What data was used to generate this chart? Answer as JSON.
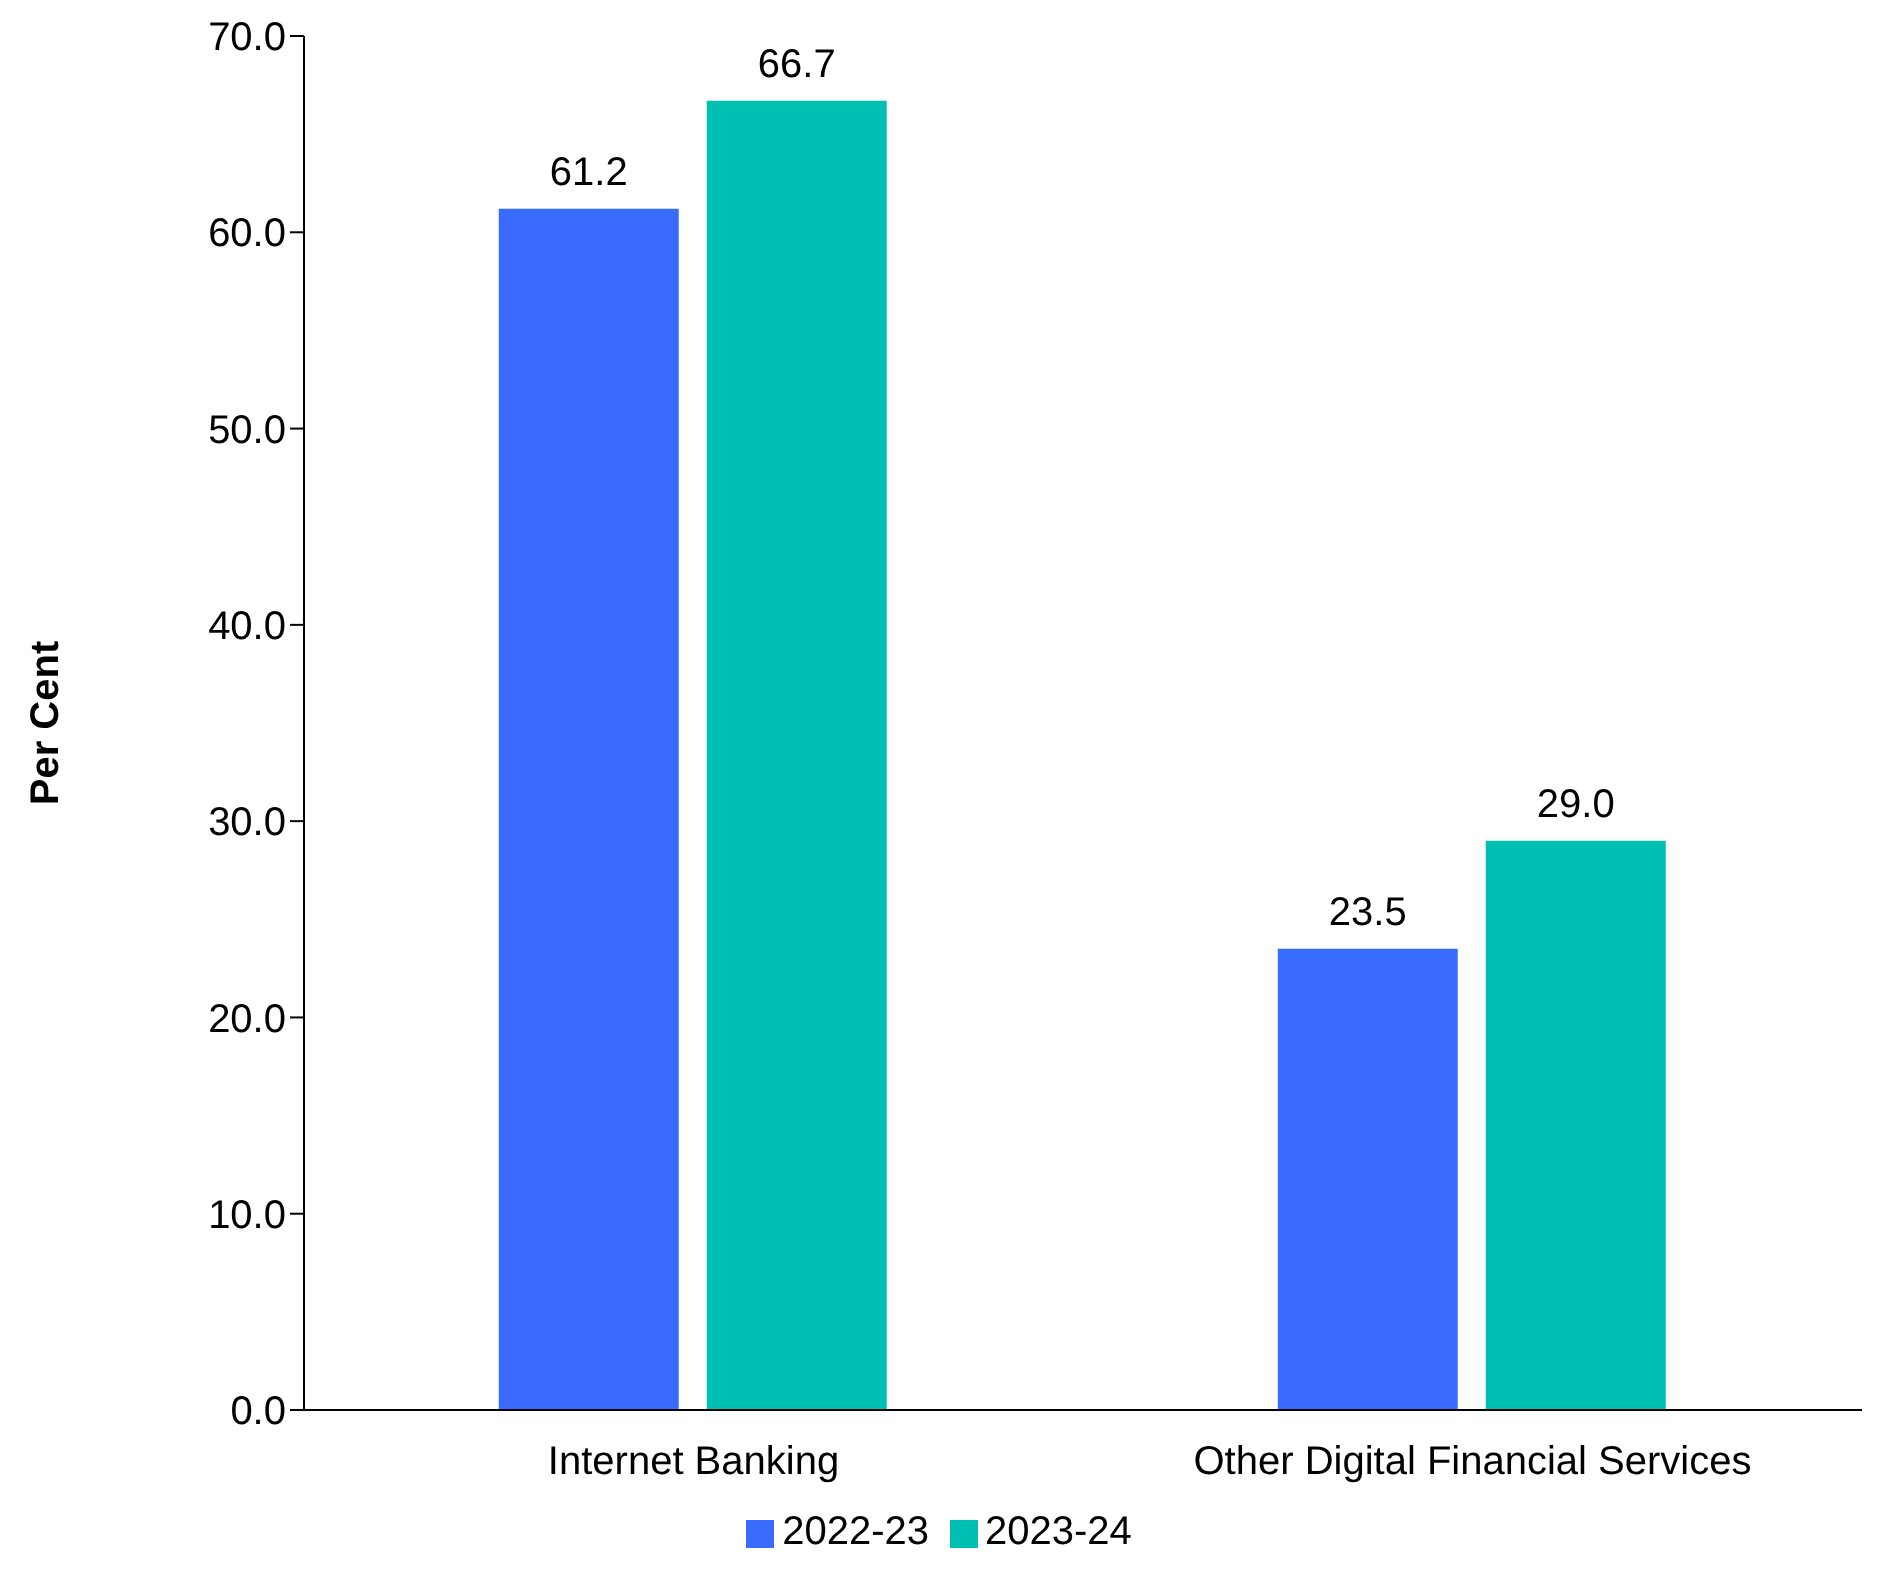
{
  "chart_data": {
    "type": "bar",
    "ylabel": "Per Cent",
    "categories": [
      "Internet Banking",
      "Other Digital Financial Services"
    ],
    "series": [
      {
        "name": "2022-23",
        "color": "#3a6bff",
        "values": [
          61.2,
          23.5
        ],
        "value_labels": [
          "61.2",
          "23.5"
        ]
      },
      {
        "name": "2023-24",
        "color": "#00bfb3",
        "values": [
          66.7,
          29.0
        ],
        "value_labels": [
          "66.7",
          "29.0"
        ]
      }
    ],
    "ylim": [
      0,
      70
    ],
    "yticks": [
      {
        "value": 0,
        "label": "0.0"
      },
      {
        "value": 10,
        "label": "10.0"
      },
      {
        "value": 20,
        "label": "20.0"
      },
      {
        "value": 30,
        "label": "30.0"
      },
      {
        "value": 40,
        "label": "40.0"
      },
      {
        "value": 50,
        "label": "50.0"
      },
      {
        "value": 60,
        "label": "60.0"
      },
      {
        "value": 70,
        "label": "70.0"
      }
    ],
    "grid": false,
    "legend": "bottom"
  }
}
